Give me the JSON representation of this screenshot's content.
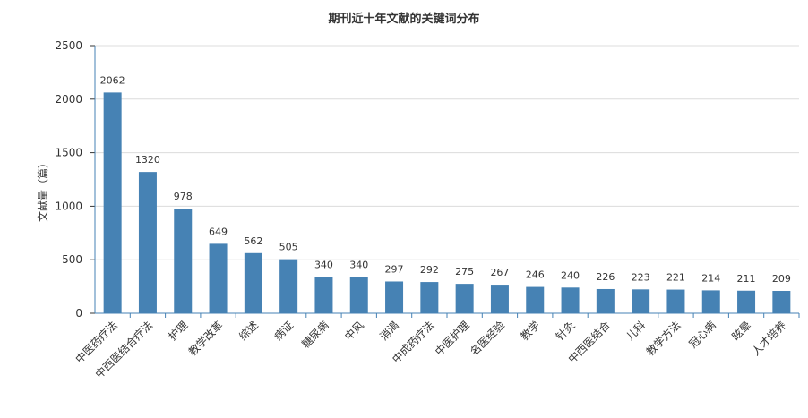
{
  "chart_data": {
    "type": "bar",
    "title": "期刊近十年文献的关键词分布",
    "ylabel": "文献量（篇）",
    "xlabel": "",
    "ylim": [
      0,
      2500
    ],
    "yticks": [
      0,
      500,
      1000,
      1500,
      2000,
      2500
    ],
    "grid": true,
    "legend": "none",
    "bar_color": "#4682b4",
    "categories": [
      "中医药疗法",
      "中西医结合疗法",
      "护理",
      "教学改革",
      "综述",
      "病证",
      "糖尿病",
      "中风",
      "消渴",
      "中成药疗法",
      "中医护理",
      "名医经验",
      "教学",
      "针灸",
      "中西医结合",
      "儿科",
      "教学方法",
      "冠心病",
      "眩晕",
      "人才培养"
    ],
    "values": [
      2062,
      1320,
      978,
      649,
      562,
      505,
      340,
      340,
      297,
      292,
      275,
      267,
      246,
      240,
      226,
      223,
      221,
      214,
      211,
      209
    ]
  }
}
